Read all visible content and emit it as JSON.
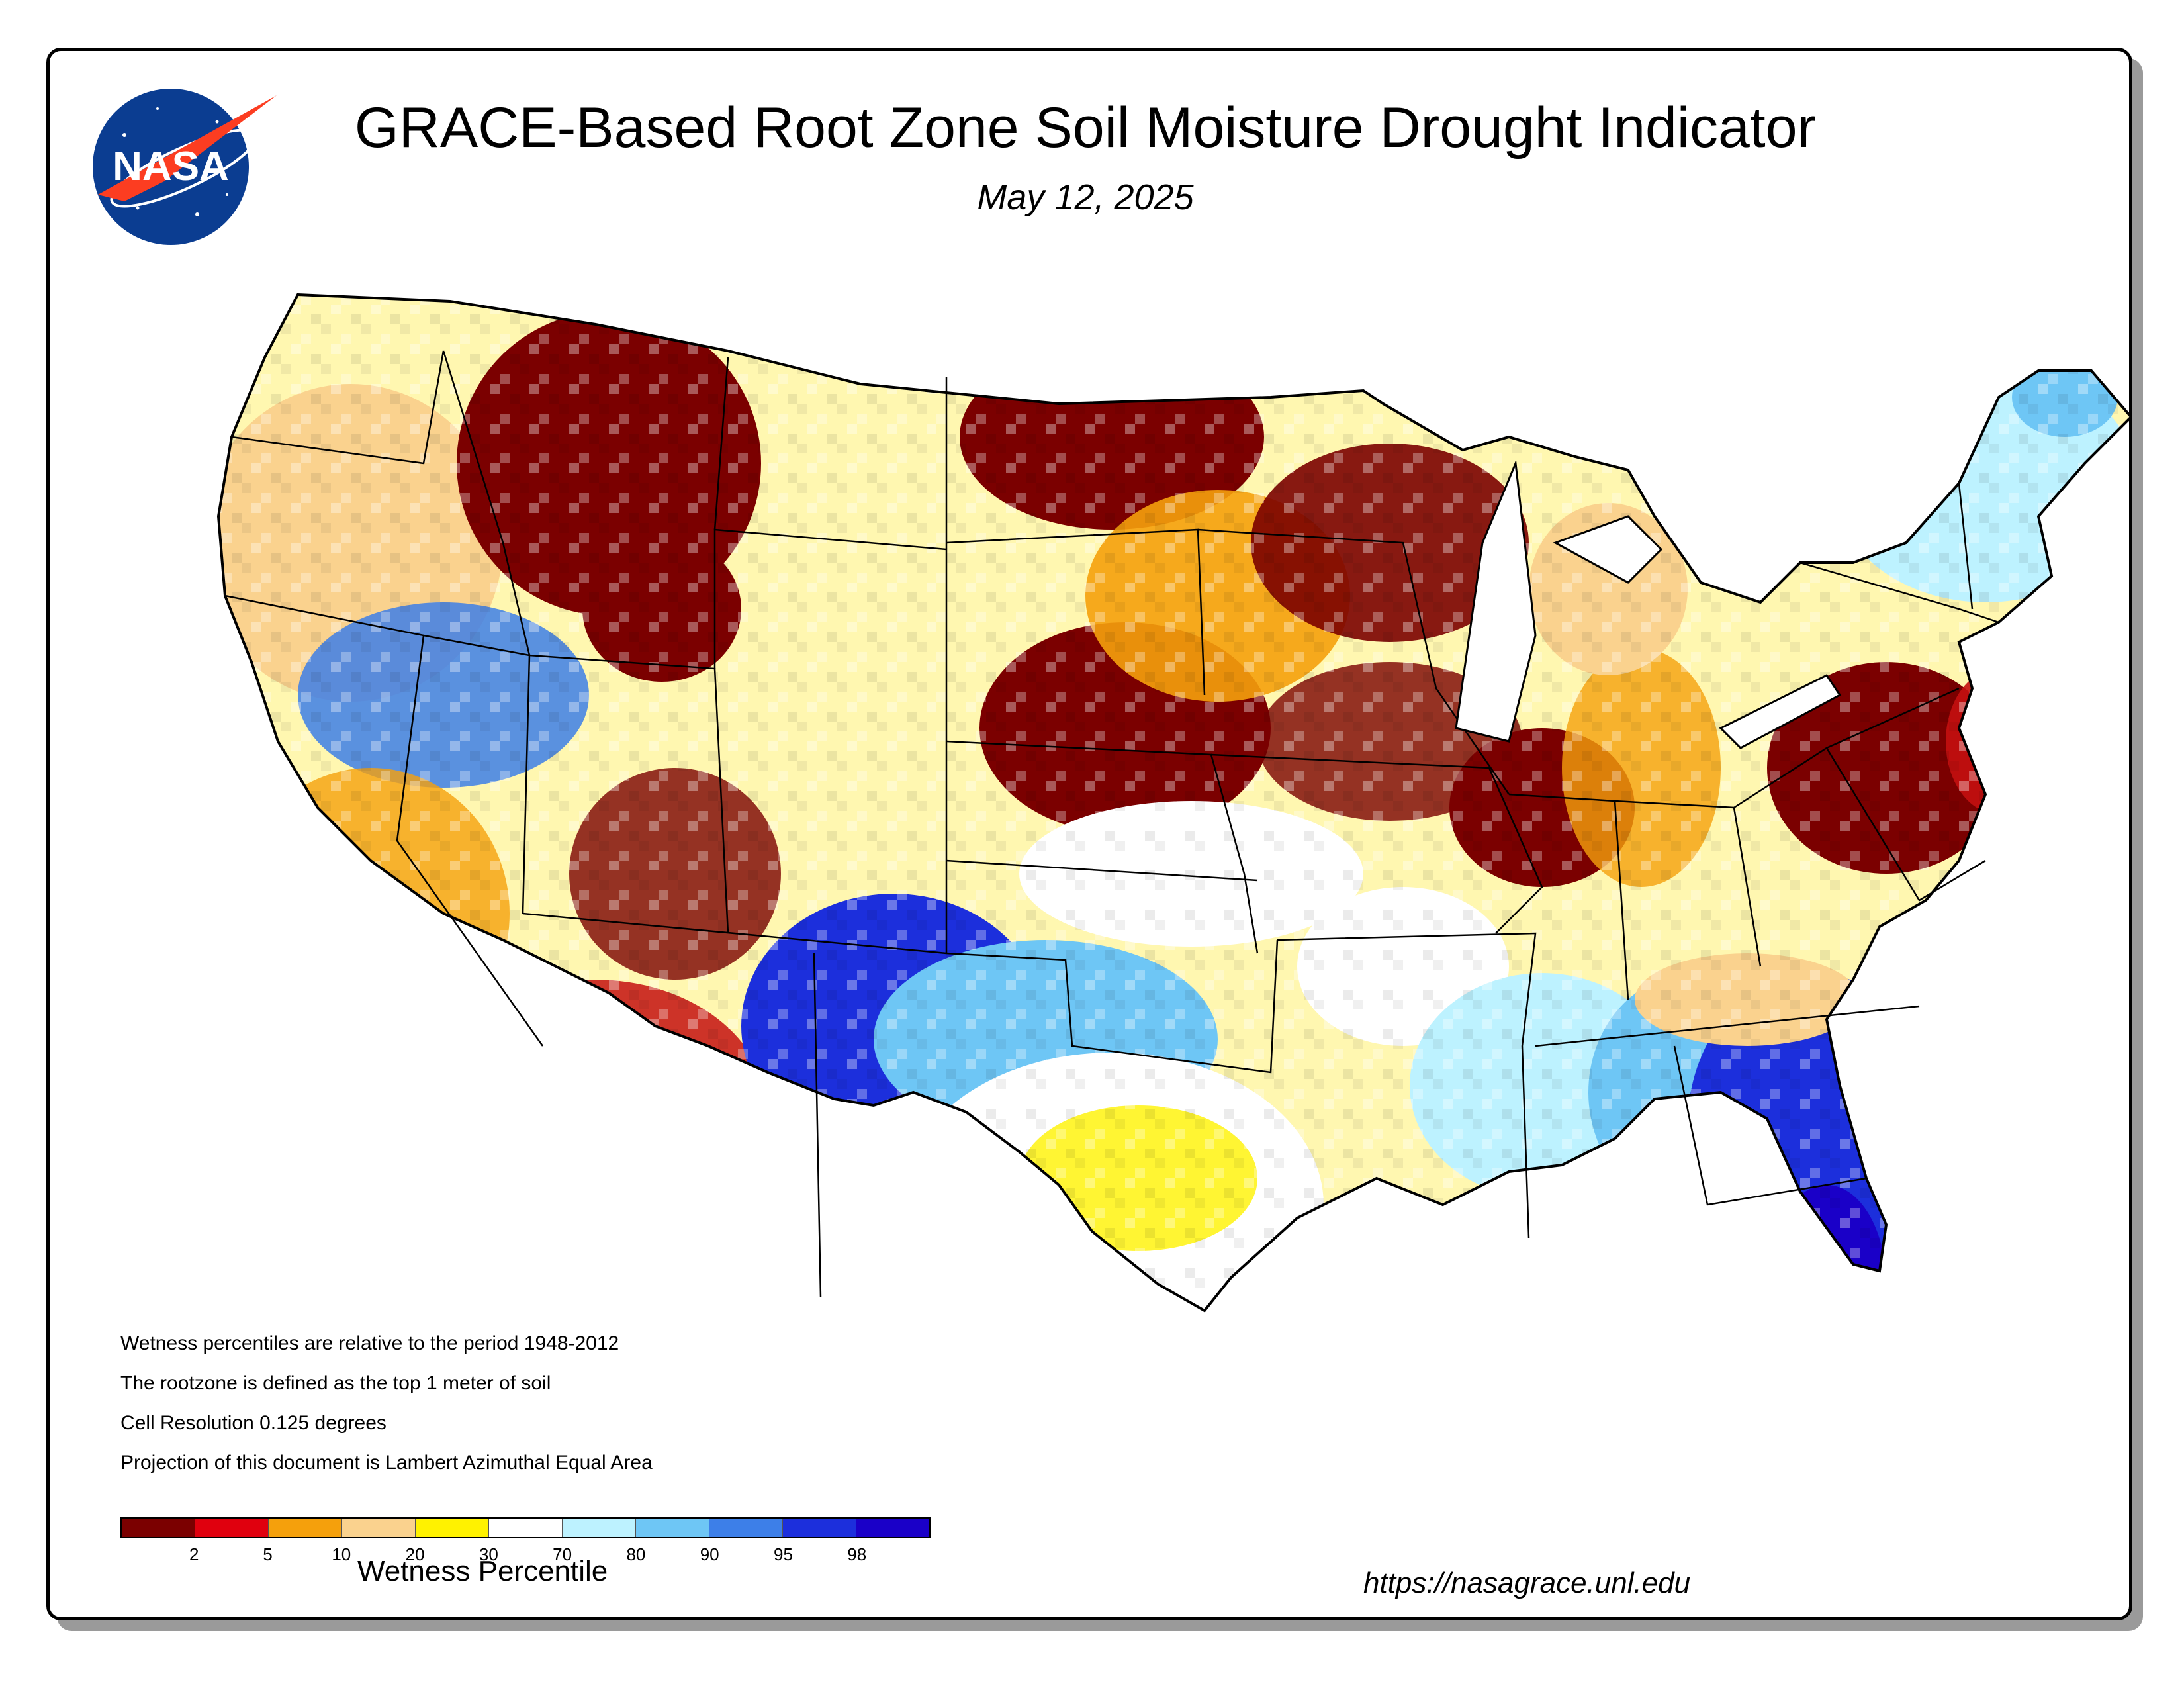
{
  "header": {
    "title": "GRACE-Based Root Zone Soil  Moisture Drought Indicator",
    "date": "May 12, 2025"
  },
  "logo": {
    "text": "NASA",
    "icon": "nasa-meatball-logo"
  },
  "notes": [
    "Wetness percentiles are relative to the period 1948-2012",
    "The rootzone is defined as the top 1 meter of soil",
    "Cell Resolution 0.125 degrees",
    "Projection of this document is Lambert Azimuthal Equal Area"
  ],
  "legend": {
    "title": "Wetness Percentile",
    "ticks": [
      "2",
      "5",
      "10",
      "20",
      "30",
      "70",
      "80",
      "90",
      "95",
      "98"
    ],
    "colors": [
      "#7b0000",
      "#e0000e",
      "#f5a00c",
      "#fad28e",
      "#fff200",
      "#ffffff",
      "#bdf2ff",
      "#6ec6f5",
      "#3d7fe8",
      "#1c2fdc",
      "#1a00c8"
    ]
  },
  "footer": {
    "url": "https://nasagrace.unl.edu"
  },
  "colors": {
    "border": "#000000",
    "shadow": "#9a9a9a",
    "nasa_blue": "#0b3d91",
    "nasa_red": "#fc3d21"
  }
}
